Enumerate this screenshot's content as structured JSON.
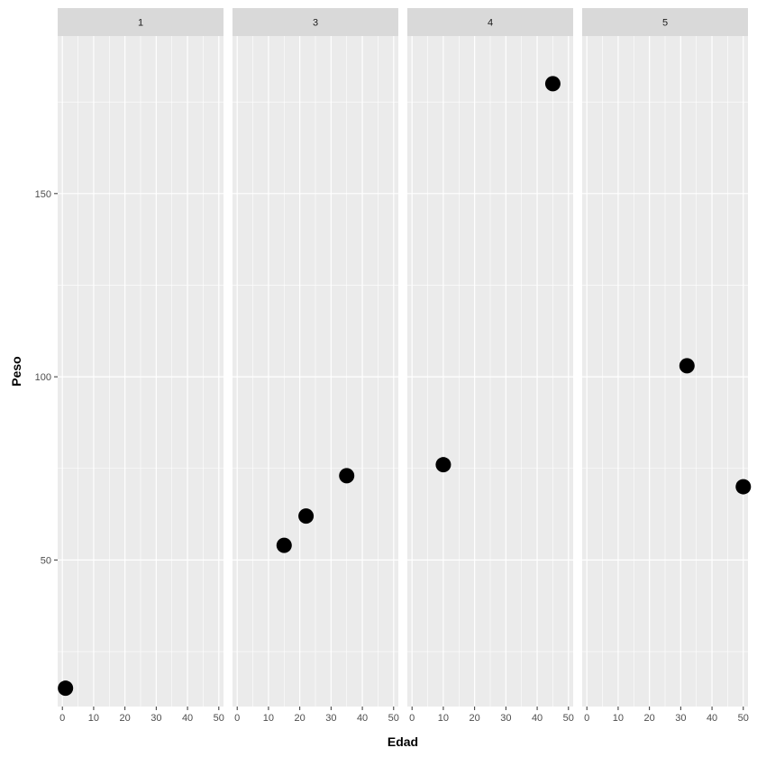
{
  "chart_data": {
    "type": "scatter",
    "facet": true,
    "xlabel": "Edad",
    "ylabel": "Peso",
    "xlim": [
      -1.5,
      51.5
    ],
    "ylim": [
      10,
      193
    ],
    "x_ticks": [
      0,
      10,
      20,
      30,
      40,
      50
    ],
    "x_tick_labels": [
      "0",
      "10",
      "20",
      "30",
      "40",
      "50"
    ],
    "y_ticks": [
      50,
      100,
      150
    ],
    "y_tick_labels": [
      "50",
      "100",
      "150"
    ],
    "grid": true,
    "colors": {
      "panel_bg": "#ebebeb",
      "strip_bg": "#d9d9d9",
      "grid": "#ffffff",
      "point": "#000000"
    },
    "panels": [
      {
        "label": "1",
        "points": [
          {
            "x": 1,
            "y": 15
          }
        ]
      },
      {
        "label": "3",
        "points": [
          {
            "x": 15,
            "y": 54
          },
          {
            "x": 22,
            "y": 62
          },
          {
            "x": 35,
            "y": 73
          }
        ]
      },
      {
        "label": "4",
        "points": [
          {
            "x": 10,
            "y": 76
          },
          {
            "x": 45,
            "y": 180
          }
        ]
      },
      {
        "label": "5",
        "points": [
          {
            "x": 32,
            "y": 103
          },
          {
            "x": 50,
            "y": 70
          }
        ]
      }
    ]
  }
}
